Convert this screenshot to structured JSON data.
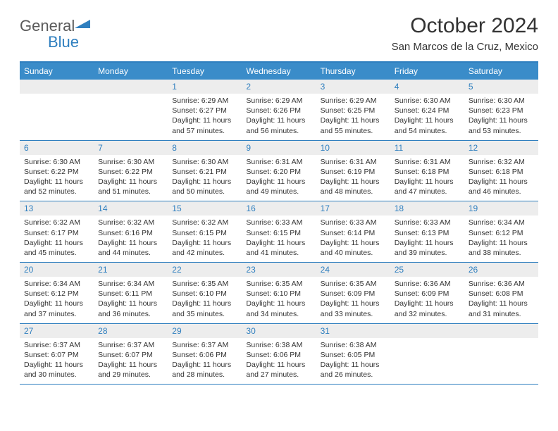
{
  "brand": {
    "part1": "General",
    "part2": "Blue"
  },
  "title": "October 2024",
  "location": "San Marcos de la Cruz, Mexico",
  "colors": {
    "header_bg": "#3a8cc9",
    "border": "#2f7fbf",
    "daynum_bg": "#ededed",
    "daynum_fg": "#2f7fbf",
    "text": "#333333",
    "page_bg": "#ffffff"
  },
  "dow": [
    "Sunday",
    "Monday",
    "Tuesday",
    "Wednesday",
    "Thursday",
    "Friday",
    "Saturday"
  ],
  "weeks": [
    [
      {
        "n": "",
        "sr": "",
        "ss": "",
        "dl": ""
      },
      {
        "n": "",
        "sr": "",
        "ss": "",
        "dl": ""
      },
      {
        "n": "1",
        "sr": "Sunrise: 6:29 AM",
        "ss": "Sunset: 6:27 PM",
        "dl": "Daylight: 11 hours and 57 minutes."
      },
      {
        "n": "2",
        "sr": "Sunrise: 6:29 AM",
        "ss": "Sunset: 6:26 PM",
        "dl": "Daylight: 11 hours and 56 minutes."
      },
      {
        "n": "3",
        "sr": "Sunrise: 6:29 AM",
        "ss": "Sunset: 6:25 PM",
        "dl": "Daylight: 11 hours and 55 minutes."
      },
      {
        "n": "4",
        "sr": "Sunrise: 6:30 AM",
        "ss": "Sunset: 6:24 PM",
        "dl": "Daylight: 11 hours and 54 minutes."
      },
      {
        "n": "5",
        "sr": "Sunrise: 6:30 AM",
        "ss": "Sunset: 6:23 PM",
        "dl": "Daylight: 11 hours and 53 minutes."
      }
    ],
    [
      {
        "n": "6",
        "sr": "Sunrise: 6:30 AM",
        "ss": "Sunset: 6:22 PM",
        "dl": "Daylight: 11 hours and 52 minutes."
      },
      {
        "n": "7",
        "sr": "Sunrise: 6:30 AM",
        "ss": "Sunset: 6:22 PM",
        "dl": "Daylight: 11 hours and 51 minutes."
      },
      {
        "n": "8",
        "sr": "Sunrise: 6:30 AM",
        "ss": "Sunset: 6:21 PM",
        "dl": "Daylight: 11 hours and 50 minutes."
      },
      {
        "n": "9",
        "sr": "Sunrise: 6:31 AM",
        "ss": "Sunset: 6:20 PM",
        "dl": "Daylight: 11 hours and 49 minutes."
      },
      {
        "n": "10",
        "sr": "Sunrise: 6:31 AM",
        "ss": "Sunset: 6:19 PM",
        "dl": "Daylight: 11 hours and 48 minutes."
      },
      {
        "n": "11",
        "sr": "Sunrise: 6:31 AM",
        "ss": "Sunset: 6:18 PM",
        "dl": "Daylight: 11 hours and 47 minutes."
      },
      {
        "n": "12",
        "sr": "Sunrise: 6:32 AM",
        "ss": "Sunset: 6:18 PM",
        "dl": "Daylight: 11 hours and 46 minutes."
      }
    ],
    [
      {
        "n": "13",
        "sr": "Sunrise: 6:32 AM",
        "ss": "Sunset: 6:17 PM",
        "dl": "Daylight: 11 hours and 45 minutes."
      },
      {
        "n": "14",
        "sr": "Sunrise: 6:32 AM",
        "ss": "Sunset: 6:16 PM",
        "dl": "Daylight: 11 hours and 44 minutes."
      },
      {
        "n": "15",
        "sr": "Sunrise: 6:32 AM",
        "ss": "Sunset: 6:15 PM",
        "dl": "Daylight: 11 hours and 42 minutes."
      },
      {
        "n": "16",
        "sr": "Sunrise: 6:33 AM",
        "ss": "Sunset: 6:15 PM",
        "dl": "Daylight: 11 hours and 41 minutes."
      },
      {
        "n": "17",
        "sr": "Sunrise: 6:33 AM",
        "ss": "Sunset: 6:14 PM",
        "dl": "Daylight: 11 hours and 40 minutes."
      },
      {
        "n": "18",
        "sr": "Sunrise: 6:33 AM",
        "ss": "Sunset: 6:13 PM",
        "dl": "Daylight: 11 hours and 39 minutes."
      },
      {
        "n": "19",
        "sr": "Sunrise: 6:34 AM",
        "ss": "Sunset: 6:12 PM",
        "dl": "Daylight: 11 hours and 38 minutes."
      }
    ],
    [
      {
        "n": "20",
        "sr": "Sunrise: 6:34 AM",
        "ss": "Sunset: 6:12 PM",
        "dl": "Daylight: 11 hours and 37 minutes."
      },
      {
        "n": "21",
        "sr": "Sunrise: 6:34 AM",
        "ss": "Sunset: 6:11 PM",
        "dl": "Daylight: 11 hours and 36 minutes."
      },
      {
        "n": "22",
        "sr": "Sunrise: 6:35 AM",
        "ss": "Sunset: 6:10 PM",
        "dl": "Daylight: 11 hours and 35 minutes."
      },
      {
        "n": "23",
        "sr": "Sunrise: 6:35 AM",
        "ss": "Sunset: 6:10 PM",
        "dl": "Daylight: 11 hours and 34 minutes."
      },
      {
        "n": "24",
        "sr": "Sunrise: 6:35 AM",
        "ss": "Sunset: 6:09 PM",
        "dl": "Daylight: 11 hours and 33 minutes."
      },
      {
        "n": "25",
        "sr": "Sunrise: 6:36 AM",
        "ss": "Sunset: 6:09 PM",
        "dl": "Daylight: 11 hours and 32 minutes."
      },
      {
        "n": "26",
        "sr": "Sunrise: 6:36 AM",
        "ss": "Sunset: 6:08 PM",
        "dl": "Daylight: 11 hours and 31 minutes."
      }
    ],
    [
      {
        "n": "27",
        "sr": "Sunrise: 6:37 AM",
        "ss": "Sunset: 6:07 PM",
        "dl": "Daylight: 11 hours and 30 minutes."
      },
      {
        "n": "28",
        "sr": "Sunrise: 6:37 AM",
        "ss": "Sunset: 6:07 PM",
        "dl": "Daylight: 11 hours and 29 minutes."
      },
      {
        "n": "29",
        "sr": "Sunrise: 6:37 AM",
        "ss": "Sunset: 6:06 PM",
        "dl": "Daylight: 11 hours and 28 minutes."
      },
      {
        "n": "30",
        "sr": "Sunrise: 6:38 AM",
        "ss": "Sunset: 6:06 PM",
        "dl": "Daylight: 11 hours and 27 minutes."
      },
      {
        "n": "31",
        "sr": "Sunrise: 6:38 AM",
        "ss": "Sunset: 6:05 PM",
        "dl": "Daylight: 11 hours and 26 minutes."
      },
      {
        "n": "",
        "sr": "",
        "ss": "",
        "dl": ""
      },
      {
        "n": "",
        "sr": "",
        "ss": "",
        "dl": ""
      }
    ]
  ]
}
